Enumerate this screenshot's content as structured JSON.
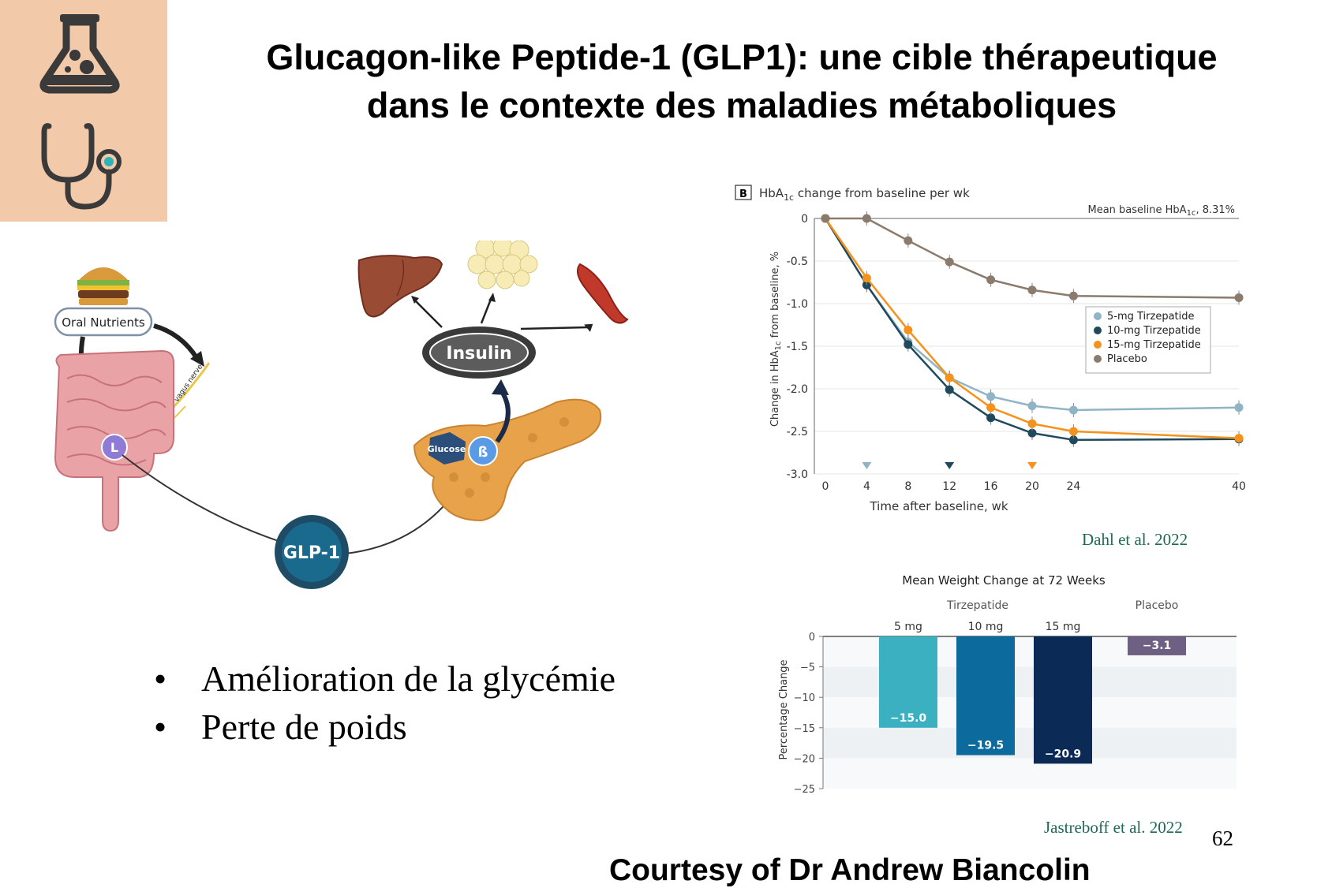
{
  "title": {
    "line1": "Glucagon-like Peptide-1 (GLP1): une cible thérapeutique",
    "line2": "dans le contexte des maladies métaboliques"
  },
  "corner_icons": [
    "flask-icon",
    "stethoscope-icon"
  ],
  "diagram": {
    "oral_nutrients": "Oral Nutrients",
    "vagus_nerve": "vagus nerve",
    "l_cell": "L",
    "glp1": "GLP-1",
    "insulin": "Insulin",
    "glucose": "Glucose",
    "beta_cell": "ß"
  },
  "bullets": [
    "Amélioration de la glycémie",
    "Perte de poids"
  ],
  "chart_hba1c": {
    "panel_label": "B",
    "title_pre": "HbA",
    "title_sub": "1c",
    "title_post": " change from baseline per wk",
    "baseline_pre": "Mean baseline HbA",
    "baseline_sub": "1c",
    "baseline_post": ", 8.31%",
    "ylabel_pre": "Change in HbA",
    "ylabel_sub": "1c",
    "ylabel_post": " from baseline, %",
    "xlabel": "Time after baseline, wk",
    "citation": "Dahl et al. 2022"
  },
  "chart_weight": {
    "title": "Mean Weight Change at 72 Weeks",
    "group_label": "Tirzepatide",
    "placebo_label": "Placebo",
    "ylabel": "Percentage Change",
    "citation": "Jastreboff et al. 2022"
  },
  "chart_data": [
    {
      "type": "line",
      "x": [
        0,
        4,
        8,
        12,
        16,
        20,
        24,
        40
      ],
      "xticks": [
        "0",
        "4",
        "8",
        "12",
        "16",
        "20",
        "24",
        "40"
      ],
      "ylim": [
        -3.0,
        0
      ],
      "yticks": [
        "0",
        "-0.5",
        "-1.0",
        "-1.5",
        "-2.0",
        "-2.5",
        "-3.0"
      ],
      "legend_position": "right",
      "series": [
        {
          "name": "5-mg Tirzepatide",
          "color": "#8fb4c6",
          "values": [
            0,
            -0.78,
            -1.45,
            -1.87,
            -2.09,
            -2.2,
            -2.25,
            -2.22
          ]
        },
        {
          "name": "10-mg Tirzepatide",
          "color": "#1f4a5c",
          "values": [
            0,
            -0.78,
            -1.48,
            -2.01,
            -2.34,
            -2.52,
            -2.6,
            -2.59
          ]
        },
        {
          "name": "15-mg Tirzepatide",
          "color": "#f5921e",
          "values": [
            0,
            -0.7,
            -1.31,
            -1.87,
            -2.22,
            -2.41,
            -2.5,
            -2.58
          ]
        },
        {
          "name": "Placebo",
          "color": "#8b7b6c",
          "values": [
            0,
            0,
            -0.26,
            -0.51,
            -0.72,
            -0.84,
            -0.91,
            -0.93
          ]
        }
      ],
      "markers": [
        {
          "x": 4,
          "color": "#8fb4c6"
        },
        {
          "x": 12,
          "color": "#1f4a5c"
        },
        {
          "x": 20,
          "color": "#f5921e"
        }
      ]
    },
    {
      "type": "bar",
      "categories": [
        "5 mg",
        "10 mg",
        "15 mg",
        ""
      ],
      "values": [
        -15.0,
        -19.5,
        -20.9,
        -3.1
      ],
      "labels": [
        "−15.0",
        "−19.5",
        "−20.9",
        "−3.1"
      ],
      "colors": [
        "#3ab0c0",
        "#0d6a9c",
        "#0b2a55",
        "#6d6082"
      ],
      "ylim": [
        -25,
        0
      ],
      "yticks": [
        "0",
        "−5",
        "−10",
        "−15",
        "−20",
        "−25"
      ]
    }
  ],
  "page_number": "62",
  "courtesy": "Courtesy of Dr Andrew Biancolin"
}
